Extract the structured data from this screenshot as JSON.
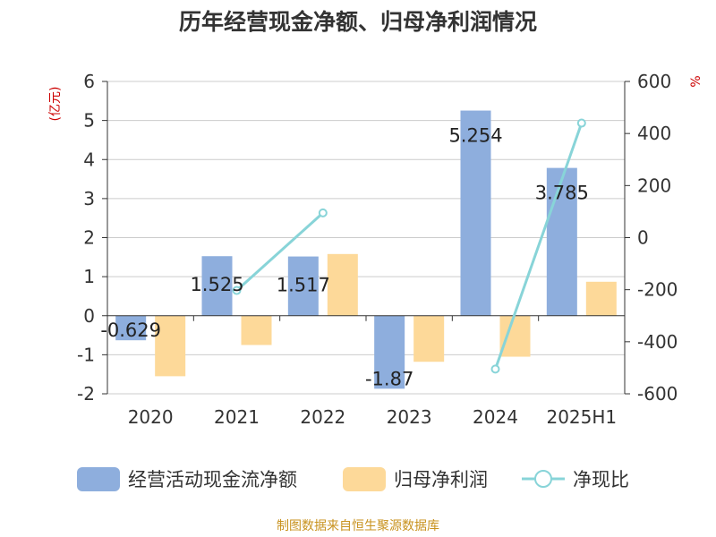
{
  "colors": {
    "bar1": "#8eaedd",
    "bar2": "#fdd999",
    "line": "#88d4d8",
    "axis_unit": "#cc0000",
    "grid": "#cccccc",
    "source": "#c8921e"
  },
  "chart_data": {
    "type": "bar",
    "title": "历年经营现金净额、归母净利润情况",
    "categories": [
      "2020",
      "2021",
      "2022",
      "2023",
      "2024",
      "2025H1"
    ],
    "y_left": {
      "label": "(亿元)",
      "ylim": [
        -2,
        6
      ],
      "ticks": [
        -2,
        -1,
        0,
        1,
        2,
        3,
        4,
        5,
        6
      ]
    },
    "y_right": {
      "label": "%",
      "ylim": [
        -600,
        600
      ],
      "ticks": [
        -600,
        -400,
        -200,
        0,
        200,
        400,
        600
      ]
    },
    "series": [
      {
        "name": "经营活动现金流净额",
        "type": "bar",
        "axis": "left",
        "values": [
          -0.629,
          1.525,
          1.517,
          -1.87,
          5.254,
          3.785
        ],
        "data_labels": [
          "-0.629",
          "1.525",
          "1.517",
          "-1.87",
          "5.254",
          "3.785"
        ]
      },
      {
        "name": "归母净利润",
        "type": "bar",
        "axis": "left",
        "values": [
          -1.55,
          -0.75,
          1.58,
          -1.18,
          -1.05,
          0.87
        ]
      },
      {
        "name": "净现比",
        "type": "line",
        "axis": "right",
        "values": [
          null,
          -203,
          95,
          null,
          -505,
          440
        ]
      }
    ],
    "grid": true,
    "legend_position": "bottom"
  },
  "source_text": "制图数据来自恒生聚源数据库"
}
